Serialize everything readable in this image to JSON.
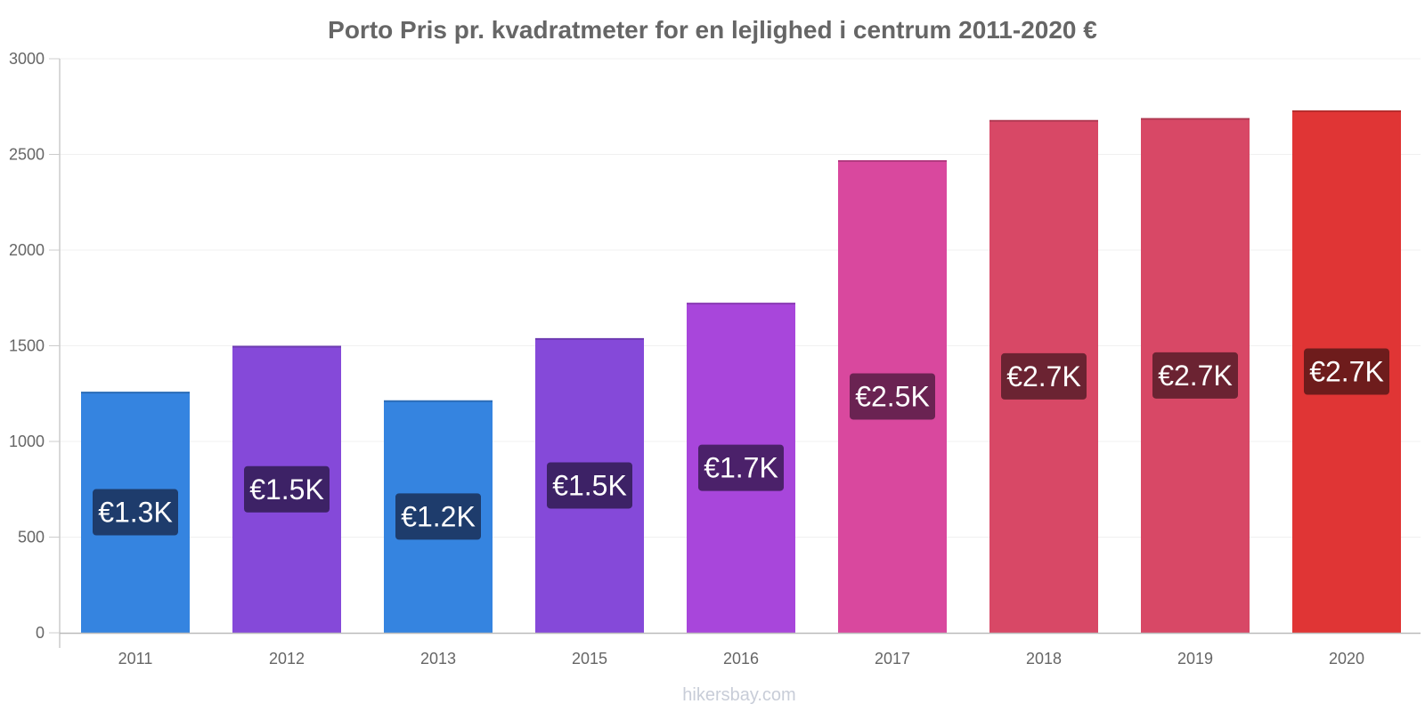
{
  "chart_data": {
    "type": "bar",
    "title": "Porto Pris pr. kvadratmeter for en lejlighed i centrum 2011-2020 €",
    "xlabel": "",
    "ylabel": "",
    "categories": [
      "2011",
      "2012",
      "2013",
      "2015",
      "2016",
      "2017",
      "2018",
      "2019",
      "2020"
    ],
    "values": [
      1260,
      1500,
      1215,
      1540,
      1725,
      2470,
      2680,
      2690,
      2730
    ],
    "data_labels": [
      "€1.3K",
      "€1.5K",
      "€1.2K",
      "€1.5K",
      "€1.7K",
      "€2.5K",
      "€2.7K",
      "€2.7K",
      "€2.7K"
    ],
    "bar_colors": [
      "#3584e0",
      "#8549d9",
      "#3584e0",
      "#8549d9",
      "#a846db",
      "#d9489e",
      "#d84866",
      "#d84866",
      "#e03535"
    ],
    "label_bg_colors": [
      "#1e3c6c",
      "#3d2266",
      "#1e3c6c",
      "#3d2266",
      "#4b216a",
      "#6a2352",
      "#6b2332",
      "#6b2332",
      "#6e1c1c"
    ],
    "ylim": [
      0,
      3000
    ],
    "yticks": [
      "0",
      "500",
      "1000",
      "1500",
      "2000",
      "2500",
      "3000"
    ],
    "grid": true,
    "legend": "none"
  },
  "watermark": "hikersbay.com"
}
